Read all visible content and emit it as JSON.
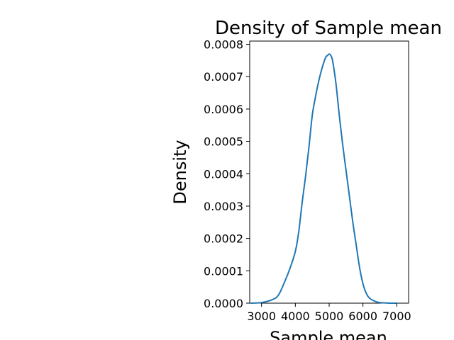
{
  "chart_data": {
    "type": "line",
    "title": "Density of Sample mean",
    "xlabel": "Sample mean",
    "ylabel": "Density",
    "xlim": [
      2650,
      7350
    ],
    "ylim": [
      0,
      0.00081
    ],
    "xticks": [
      3000,
      4000,
      5000,
      6000,
      7000
    ],
    "xtick_labels": [
      "3000",
      "4000",
      "5000",
      "6000",
      "7000"
    ],
    "yticks": [
      0,
      0.0001,
      0.0002,
      0.0003,
      0.0004,
      0.0005,
      0.0006,
      0.0007,
      0.0008
    ],
    "ytick_labels": [
      "0.0000",
      "0.0001",
      "0.0002",
      "0.0003",
      "0.0004",
      "0.0005",
      "0.0006",
      "0.0007",
      "0.0008"
    ],
    "grid": false,
    "legend": "none",
    "series": [
      {
        "color": "#1f77b4",
        "x": [
          2700,
          3000,
          3300,
          3500,
          3700,
          3850,
          4000,
          4100,
          4200,
          4300,
          4400,
          4500,
          4600,
          4700,
          4800,
          4900,
          4950,
          5000,
          5050,
          5100,
          5200,
          5300,
          5400,
          5500,
          5600,
          5700,
          5800,
          5900,
          6000,
          6100,
          6200,
          6400,
          6600,
          6800,
          7000
        ],
        "y": [
          0.0,
          2e-06,
          1e-05,
          2.5e-05,
          7e-05,
          0.00011,
          0.00016,
          0.00022,
          0.00031,
          0.00039,
          0.00048,
          0.00058,
          0.00064,
          0.00069,
          0.00073,
          0.00076,
          0.000765,
          0.00077,
          0.000765,
          0.00075,
          0.00068,
          0.00058,
          0.00049,
          0.00041,
          0.00033,
          0.00025,
          0.00018,
          0.00011,
          6e-05,
          3e-05,
          1.5e-05,
          4e-06,
          1e-06,
          0.0,
          0.0
        ]
      }
    ]
  }
}
